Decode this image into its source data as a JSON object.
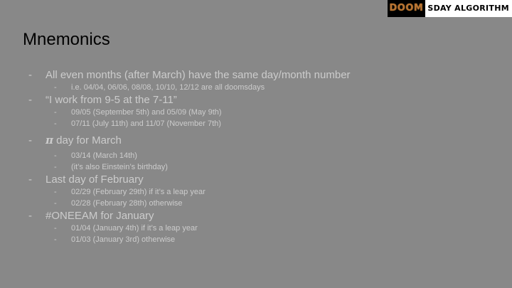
{
  "logo": {
    "left_text": "DOOM",
    "right_text": "SDAY ALGORITHM"
  },
  "title": "Mnemonics",
  "bullet_marker": "-",
  "items": [
    {
      "text": "All even months (after March) have the same day/month number",
      "sub": [
        "i.e. 04/04, 06/06, 08/08, 10/10, 12/12 are all doomsdays"
      ]
    },
    {
      "text": "“I work from 9-5 at the 7-11”",
      "sub": [
        "09/05 (September 5th) and 05/09 (May 9th)",
        "07/11 (July 11th) and 11/07 (November 7th)"
      ]
    },
    {
      "pi": "π",
      "text": "day for March",
      "sub": [
        "03/14 (March 14th)",
        "(it’s also Einstein’s birthday)"
      ]
    },
    {
      "text": "Last day of February",
      "sub": [
        "02/29 (February 29th) if it’s a leap year",
        "02/28 (February 28th) otherwise"
      ]
    },
    {
      "text": "#ONEEAM for January",
      "sub": [
        "01/04 (January 4th) if it’s a leap year",
        "01/03 (January 3rd) otherwise"
      ]
    }
  ]
}
